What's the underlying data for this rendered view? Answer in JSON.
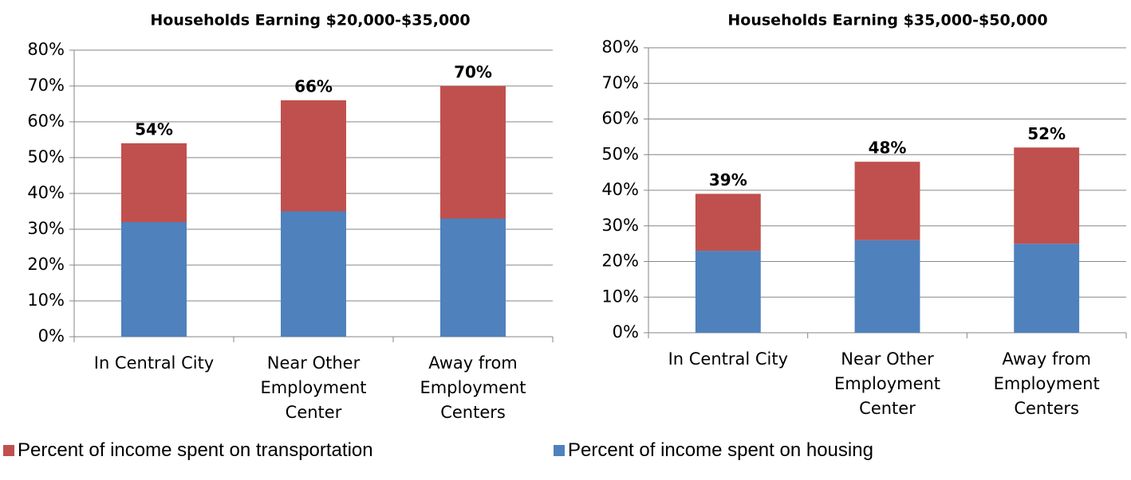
{
  "chart_data": [
    {
      "type": "stacked_bar",
      "title": "Households Earning $20,000-$35,000",
      "categories": [
        "In Central City",
        "Near Other Employment Center",
        "Away from Employment Centers"
      ],
      "series": [
        {
          "name": "Percent of income spent on housing",
          "color": "#4f81bd",
          "values": [
            32,
            35,
            33
          ]
        },
        {
          "name": "Percent of income spent on transportation",
          "color": "#c0504d",
          "values": [
            22,
            31,
            37
          ]
        }
      ],
      "total_labels": [
        "54%",
        "66%",
        "70%"
      ],
      "ylim": [
        0,
        80
      ],
      "yticks": [
        {
          "value": 0,
          "label": "0%"
        },
        {
          "value": 10,
          "label": "10%"
        },
        {
          "value": 20,
          "label": "20%"
        },
        {
          "value": 30,
          "label": "30%"
        },
        {
          "value": 40,
          "label": "40%"
        },
        {
          "value": 50,
          "label": "50%"
        },
        {
          "value": 60,
          "label": "60%"
        },
        {
          "value": 70,
          "label": "70%"
        },
        {
          "value": 80,
          "label": "80%"
        }
      ],
      "grid": true
    },
    {
      "type": "stacked_bar",
      "title": "Households Earning $35,000-$50,000",
      "categories": [
        "In Central City",
        "Near Other Employment Center",
        "Away from Employment Centers"
      ],
      "series": [
        {
          "name": "Percent of income spent on housing",
          "color": "#4f81bd",
          "values": [
            23,
            26,
            25
          ]
        },
        {
          "name": "Percent of income spent on transportation",
          "color": "#c0504d",
          "values": [
            16,
            22,
            27
          ]
        }
      ],
      "total_labels": [
        "39%",
        "48%",
        "52%"
      ],
      "ylim": [
        0,
        80
      ],
      "yticks": [
        {
          "value": 0,
          "label": "0%"
        },
        {
          "value": 10,
          "label": "10%"
        },
        {
          "value": 20,
          "label": "20%"
        },
        {
          "value": 30,
          "label": "30%"
        },
        {
          "value": 40,
          "label": "40%"
        },
        {
          "value": 50,
          "label": "50%"
        },
        {
          "value": 60,
          "label": "60%"
        },
        {
          "value": 70,
          "label": "70%"
        },
        {
          "value": 80,
          "label": "80%"
        }
      ],
      "grid": true
    }
  ]
}
